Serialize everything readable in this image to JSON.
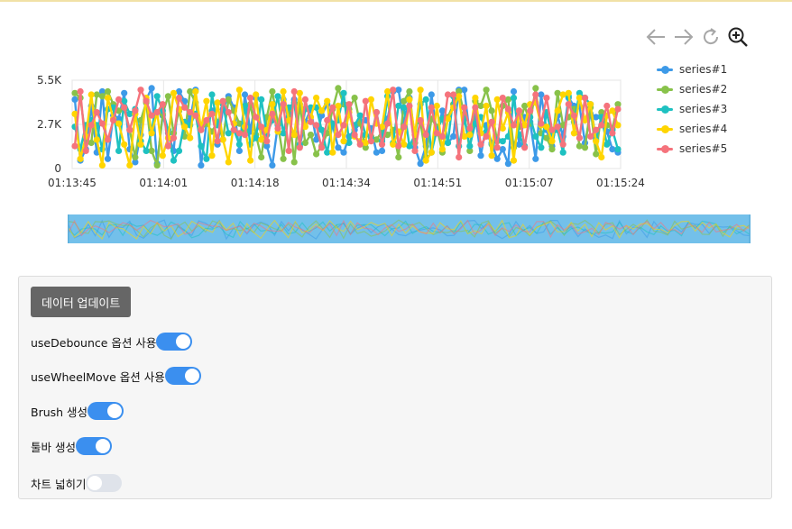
{
  "toolbar": {
    "items": [
      {
        "name": "back-icon"
      },
      {
        "name": "forward-icon"
      },
      {
        "name": "refresh-icon"
      },
      {
        "name": "zoom-in-icon"
      }
    ]
  },
  "chart_data": {
    "type": "line",
    "title": "",
    "xlabel": "",
    "ylabel": "",
    "x_ticks": [
      "01:13:45",
      "01:14:01",
      "01:14:18",
      "01:14:34",
      "01:14:51",
      "01:15:07",
      "01:15:24"
    ],
    "y_ticks": [
      "0",
      "2.7K",
      "5.5K"
    ],
    "ylim": [
      0,
      5500
    ],
    "grid": true,
    "legend_position": "right",
    "series": [
      {
        "name": "series#1",
        "color": "#3d9ae8",
        "values": [
          4300,
          500,
          1200,
          3900,
          1000,
          4800,
          600,
          3300,
          3100,
          4700,
          1200,
          400,
          2100,
          4300,
          5000,
          300,
          3300,
          2200,
          1100,
          4800,
          4200,
          3000,
          4900,
          200,
          2800,
          3600,
          1500,
          3700,
          4500,
          3800,
          1100,
          4600,
          2300,
          4400,
          2500,
          1400,
          200,
          2700,
          4300,
          3000,
          4300,
          1400,
          2900,
          3700,
          1800,
          3300,
          4000,
          2700,
          1300,
          1000,
          2000,
          2400,
          2800,
          3000,
          2500,
          1000,
          1100,
          3100,
          4800,
          4900,
          2800,
          4400,
          1300,
          300,
          1400,
          4600,
          2200,
          3600,
          1600,
          2000,
          4900,
          4900,
          2100,
          3300,
          800,
          2700,
          1600,
          600,
          1200,
          300,
          4800,
          1500,
          3200,
          2900,
          600,
          4600,
          2400,
          1400,
          3300,
          2000,
          4400,
          3900,
          3900,
          1600,
          3400,
          3200,
          3300,
          2300,
          1200,
          1000
        ]
      },
      {
        "name": "series#2",
        "color": "#88c24a",
        "values": [
          4700,
          4400,
          1800,
          1600,
          4600,
          4500,
          4800,
          4000,
          3600,
          3700,
          2400,
          700,
          3000,
          4100,
          1100,
          200,
          3400,
          4500,
          2200,
          3600,
          2000,
          4800,
          4100,
          2400,
          2800,
          2300,
          2900,
          1800,
          4300,
          3600,
          2800,
          2300,
          4000,
          2100,
          700,
          3200,
          4800,
          2800,
          600,
          3700,
          400,
          4000,
          1600,
          2100,
          900,
          1400,
          2200,
          3700,
          5000,
          4000,
          3700,
          4400,
          2800,
          1300,
          2000,
          1800,
          2300,
          2100,
          2400,
          700,
          4200,
          4800,
          1600,
          2900,
          700,
          3100,
          2600,
          1000,
          3200,
          4000,
          4800,
          3400,
          1100,
          4200,
          3900,
          4900,
          3600,
          1700,
          3900,
          4300,
          1300,
          2600,
          3900,
          2800,
          5000,
          2200,
          1900,
          1200,
          4700,
          2700,
          3200,
          3700,
          1400,
          1300,
          3800,
          900,
          3500,
          2700,
          2500,
          4000
        ]
      },
      {
        "name": "series#3",
        "color": "#1ec1c1",
        "values": [
          2600,
          1200,
          2700,
          3000,
          2700,
          1200,
          3700,
          3800,
          1100,
          4200,
          3400,
          3700,
          1700,
          1100,
          2300,
          4500,
          3600,
          2400,
          500,
          1100,
          2900,
          2700,
          3400,
          1400,
          600,
          4600,
          2700,
          4000,
          2200,
          2400,
          1500,
          3900,
          1500,
          1900,
          4300,
          2100,
          3000,
          4500,
          2200,
          3800,
          4100,
          1500,
          3700,
          3800,
          3800,
          2400,
          1000,
          2800,
          3000,
          4700,
          1600,
          2700,
          3300,
          2100,
          1900,
          3500,
          1700,
          4500,
          1600,
          3900,
          3800,
          1400,
          2100,
          4000,
          4300,
          1000,
          2400,
          3100,
          1600,
          4500,
          1400,
          3100,
          1400,
          2800,
          3200,
          2300,
          1500,
          1800,
          1700,
          2000,
          4400,
          2100,
          1400,
          3200,
          2000,
          1300,
          3500,
          2100,
          2400,
          1000,
          4500,
          2900,
          4700,
          4400,
          4000,
          1800,
          3200,
          1500,
          2400,
          1200
        ]
      },
      {
        "name": "series#4",
        "color": "#ffd500",
        "values": [
          3400,
          600,
          2000,
          4600,
          1800,
          200,
          4400,
          3100,
          2800,
          1500,
          200,
          3400,
          1500,
          4400,
          2200,
          3500,
          800,
          1900,
          4700,
          3700,
          2600,
          1900,
          4800,
          2500,
          4200,
          800,
          4100,
          1800,
          400,
          2800,
          4900,
          2600,
          500,
          4600,
          1800,
          2400,
          4000,
          2300,
          4800,
          3000,
          2100,
          4700,
          2600,
          3200,
          4400,
          3600,
          4200,
          1000,
          3900,
          1700,
          3500,
          2000,
          1700,
          1600,
          4300,
          2800,
          2600,
          4800,
          1500,
          2300,
          1500,
          4300,
          2100,
          4900,
          500,
          1000,
          3900,
          1200,
          3100,
          3800,
          4500,
          2000,
          2100,
          4400,
          2200,
          3900,
          800,
          4300,
          2500,
          3500,
          500,
          3600,
          2700,
          4000,
          4100,
          2700,
          2600,
          1700,
          3600,
          4600,
          4700,
          2200,
          4400,
          3000,
          4000,
          1700,
          700,
          3300,
          3600,
          2700
        ]
      },
      {
        "name": "series#5",
        "color": "#f5737c",
        "values": [
          1400,
          4800,
          1100,
          2700,
          3500,
          2800,
          1800,
          3000,
          4300,
          3800,
          2400,
          3600,
          4900,
          4200,
          3300,
          3500,
          4000,
          1400,
          1900,
          4400,
          3800,
          3500,
          3300,
          2400,
          3000,
          3400,
          1700,
          4200,
          3500,
          2400,
          2200,
          2100,
          4400,
          3200,
          2600,
          1700,
          3400,
          2500,
          4000,
          1100,
          4800,
          1300,
          4300,
          2900,
          2700,
          1300,
          3000,
          3800,
          2100,
          2700,
          4000,
          2100,
          1500,
          4200,
          1700,
          3500,
          1500,
          2800,
          4900,
          1400,
          2600,
          3900,
          1100,
          3000,
          2100,
          3800,
          2200,
          2000,
          4600,
          4600,
          700,
          3800,
          2500,
          3800,
          1500,
          2000,
          2900,
          1300,
          4400,
          3700,
          2700,
          3600,
          1300,
          3600,
          4600,
          2800,
          4400,
          2400,
          2600,
          1500,
          4000,
          3300,
          1900,
          4400,
          2000,
          2400,
          2700,
          3900,
          2200,
          3700
        ]
      }
    ]
  },
  "controls": {
    "update_button": "데이터 업데이트",
    "options": [
      {
        "label": "useDebounce 옵션 사용",
        "on": true
      },
      {
        "label": "useWheelMove 옵션 사용",
        "on": true
      },
      {
        "label": "Brush 생성",
        "on": true
      },
      {
        "label": "툴바 생성",
        "on": true
      },
      {
        "label": "차트 넓히기",
        "on": false
      }
    ]
  }
}
